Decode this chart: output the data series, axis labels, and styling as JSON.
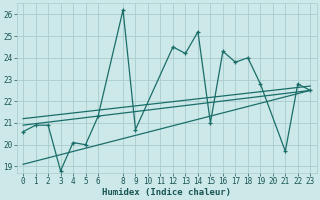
{
  "xlabel": "Humidex (Indice chaleur)",
  "bg_color": "#cce8e8",
  "grid_color": "#aacccc",
  "line_color": "#1a6e6a",
  "xlim": [
    -0.5,
    23.5
  ],
  "ylim": [
    18.7,
    26.5
  ],
  "yticks": [
    19,
    20,
    21,
    22,
    23,
    24,
    25,
    26
  ],
  "xticks": [
    0,
    1,
    2,
    3,
    4,
    5,
    6,
    8,
    9,
    10,
    11,
    12,
    13,
    14,
    15,
    16,
    17,
    18,
    19,
    20,
    21,
    22,
    23
  ],
  "xtick_labels": [
    "0",
    "1",
    "2",
    "3",
    "4",
    "5",
    "6",
    "8",
    "9",
    "10",
    "11",
    "12",
    "13",
    "14",
    "15",
    "16",
    "17",
    "18",
    "19",
    "20",
    "21",
    "22",
    "23"
  ],
  "series1_x": [
    0,
    1,
    2,
    3,
    4,
    5,
    6,
    8,
    9,
    12,
    13,
    14,
    15,
    16,
    17,
    18,
    19,
    21,
    22,
    23
  ],
  "series1_y": [
    20.6,
    20.9,
    20.9,
    18.8,
    20.1,
    20.0,
    21.3,
    26.2,
    20.7,
    24.5,
    24.2,
    25.2,
    21.0,
    24.3,
    23.8,
    24.0,
    22.8,
    19.7,
    22.8,
    22.5
  ],
  "trend1_x": [
    0,
    23
  ],
  "trend1_y": [
    20.9,
    22.5
  ],
  "trend2_x": [
    0,
    23
  ],
  "trend2_y": [
    21.2,
    22.7
  ],
  "trend3_x": [
    0,
    23
  ],
  "trend3_y": [
    19.1,
    22.5
  ],
  "tick_fontsize": 5.5,
  "label_fontsize": 6.5
}
